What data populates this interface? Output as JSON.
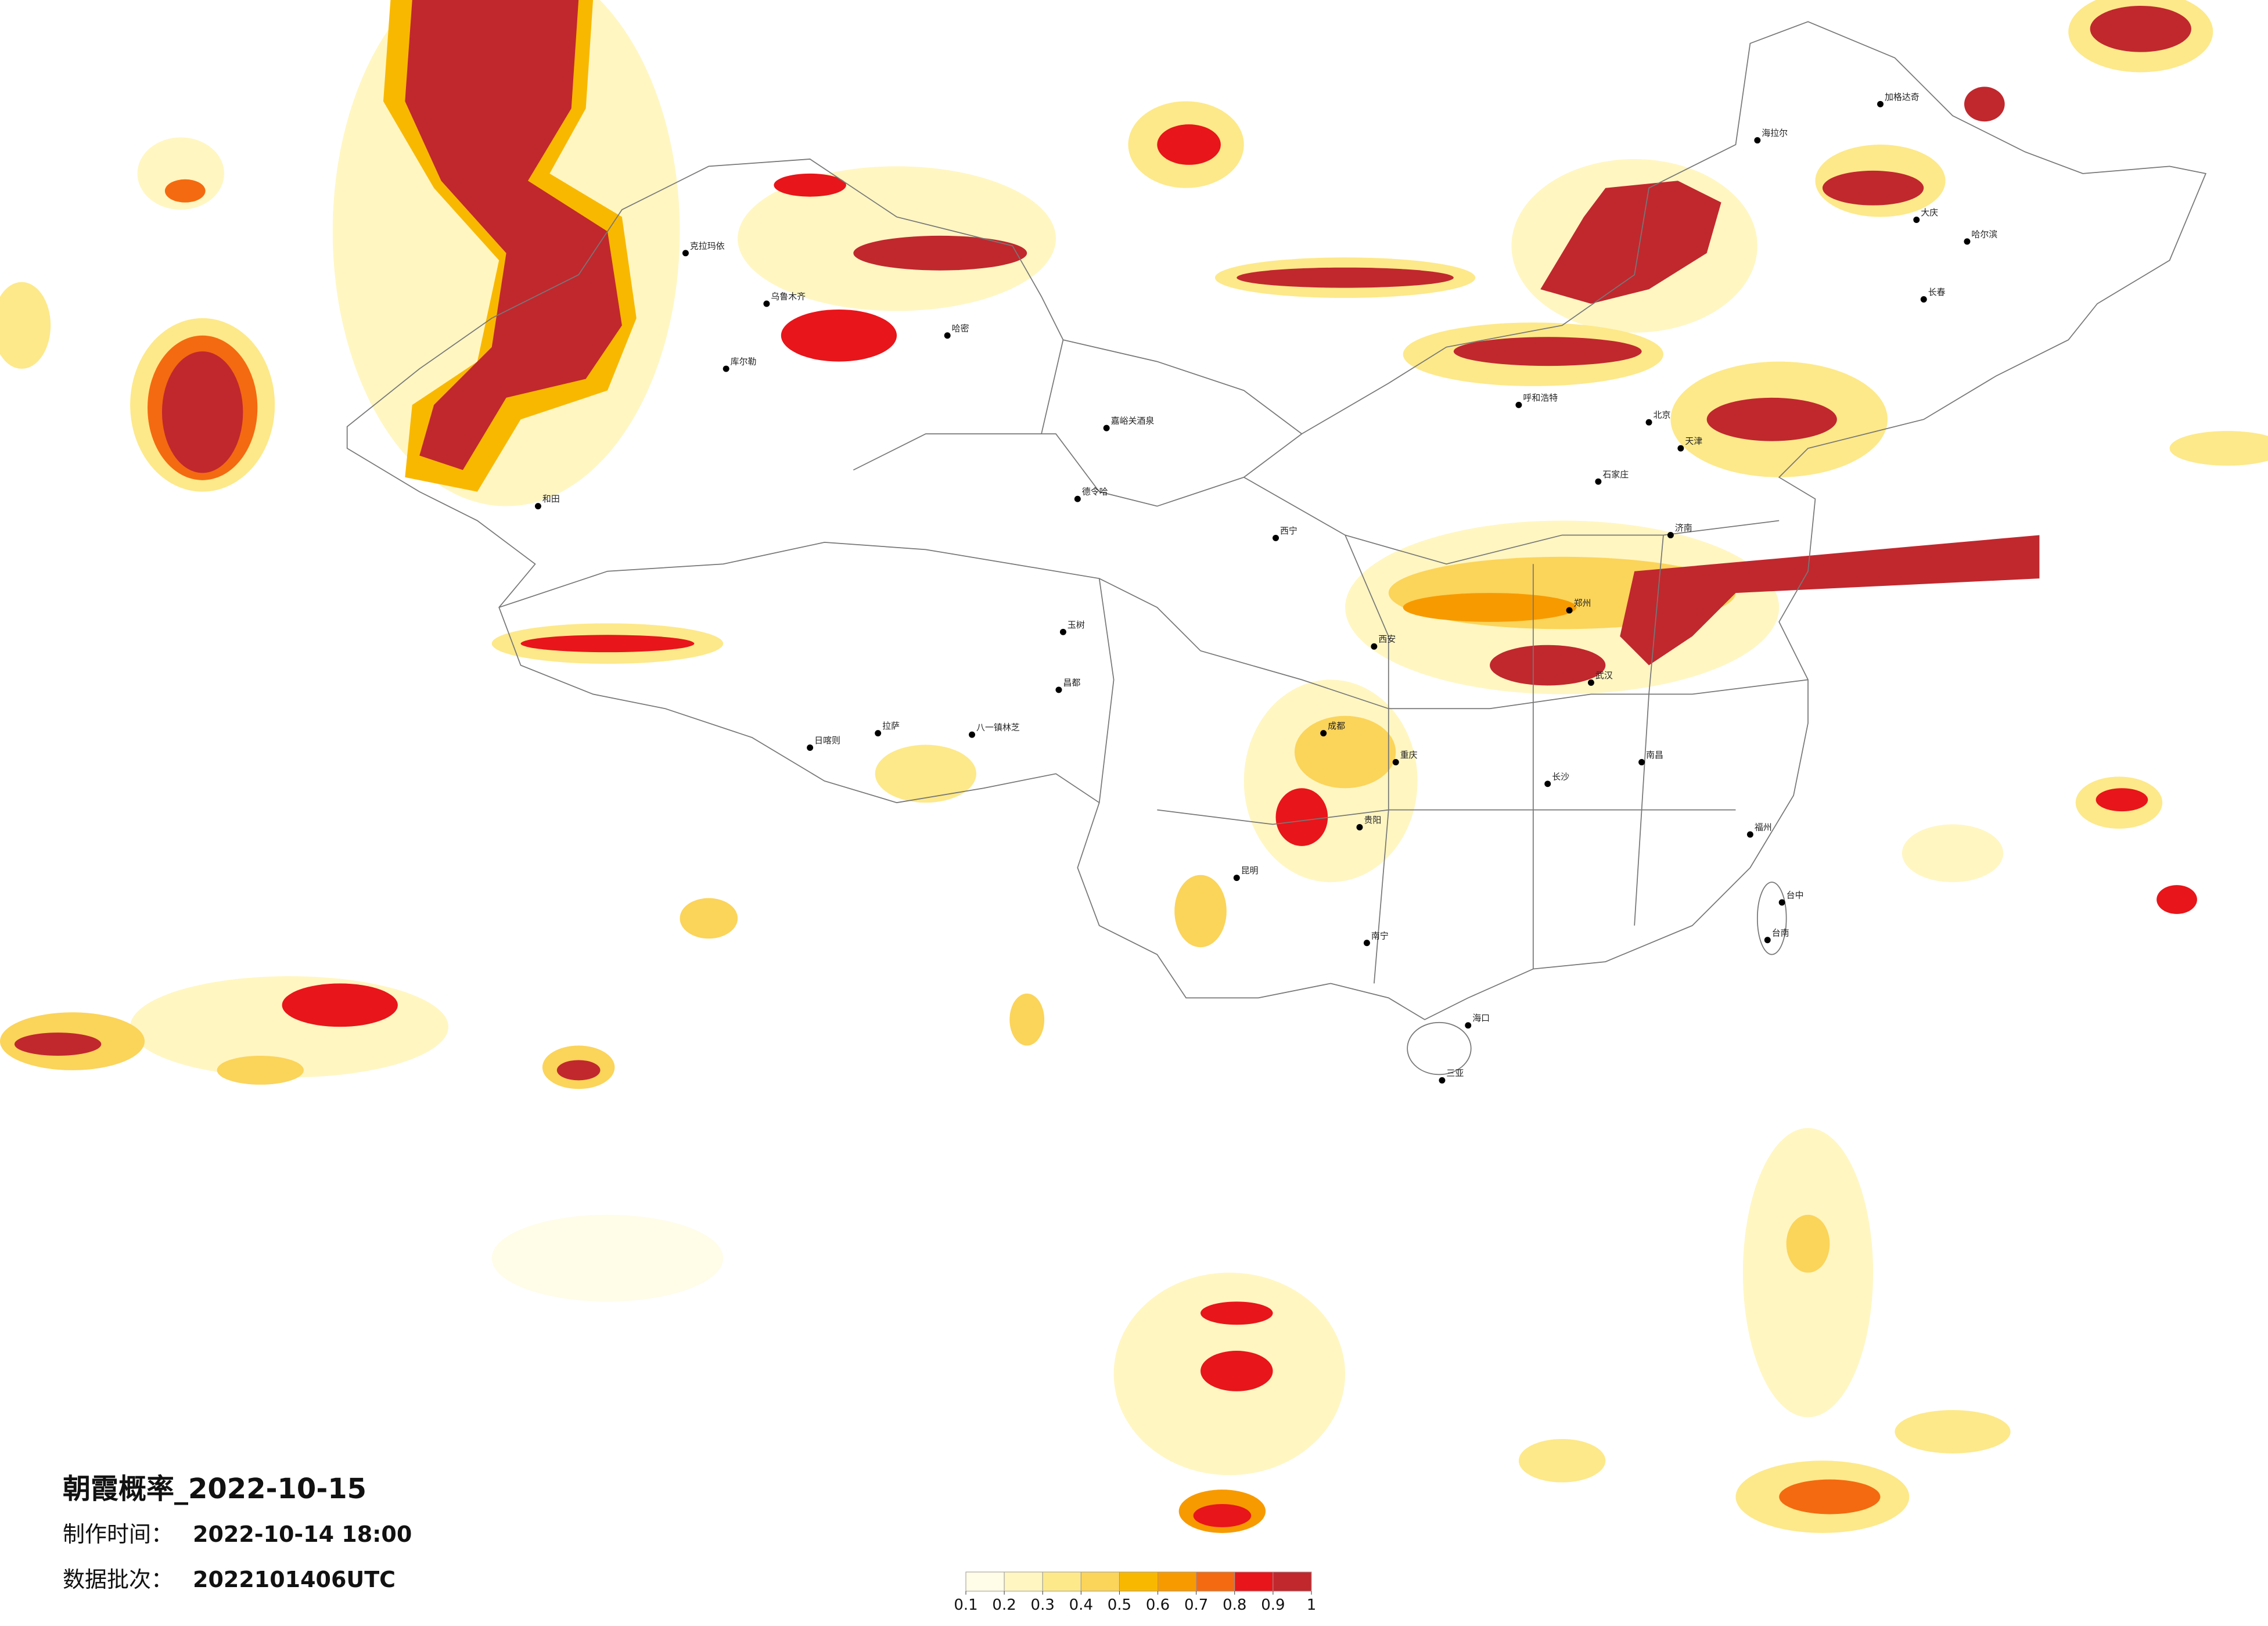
{
  "title": "朝霞概率_2022-10-15",
  "info": [
    {
      "label": "制作时间：",
      "value": "2022-10-14 18:00"
    },
    {
      "label": "数据批次：",
      "value": "2022101406UTC"
    }
  ],
  "colorbar": {
    "colors": [
      "#fffce8",
      "#fff6c2",
      "#fde98a",
      "#fbd45a",
      "#f9b800",
      "#f79a00",
      "#f46a10",
      "#e8151a",
      "#c0282e"
    ],
    "ticks": [
      0.1,
      0.2,
      0.3,
      0.4,
      0.5,
      0.6,
      0.7,
      0.8,
      0.9,
      1
    ],
    "clim": [
      0.1,
      1
    ]
  },
  "cities": [
    "克拉玛依",
    "乌鲁木齐",
    "哈密",
    "库尔勒",
    "和田",
    "嘉峪关酒泉",
    "德令哈",
    "玉树",
    "昌都",
    "八一镇林芝",
    "拉萨",
    "日喀则",
    "西宁",
    "呼和浩特",
    "北京",
    "天津",
    "石家庄",
    "济南",
    "郑州",
    "西安",
    "成都",
    "重庆",
    "贵阳",
    "昆明",
    "南宁",
    "长沙",
    "武汉",
    "南昌",
    "福州",
    "台中",
    "台南",
    "海口",
    "三亚",
    "哈尔滨",
    "长春",
    "大庆",
    "海拉尔",
    "加格达奇"
  ]
}
